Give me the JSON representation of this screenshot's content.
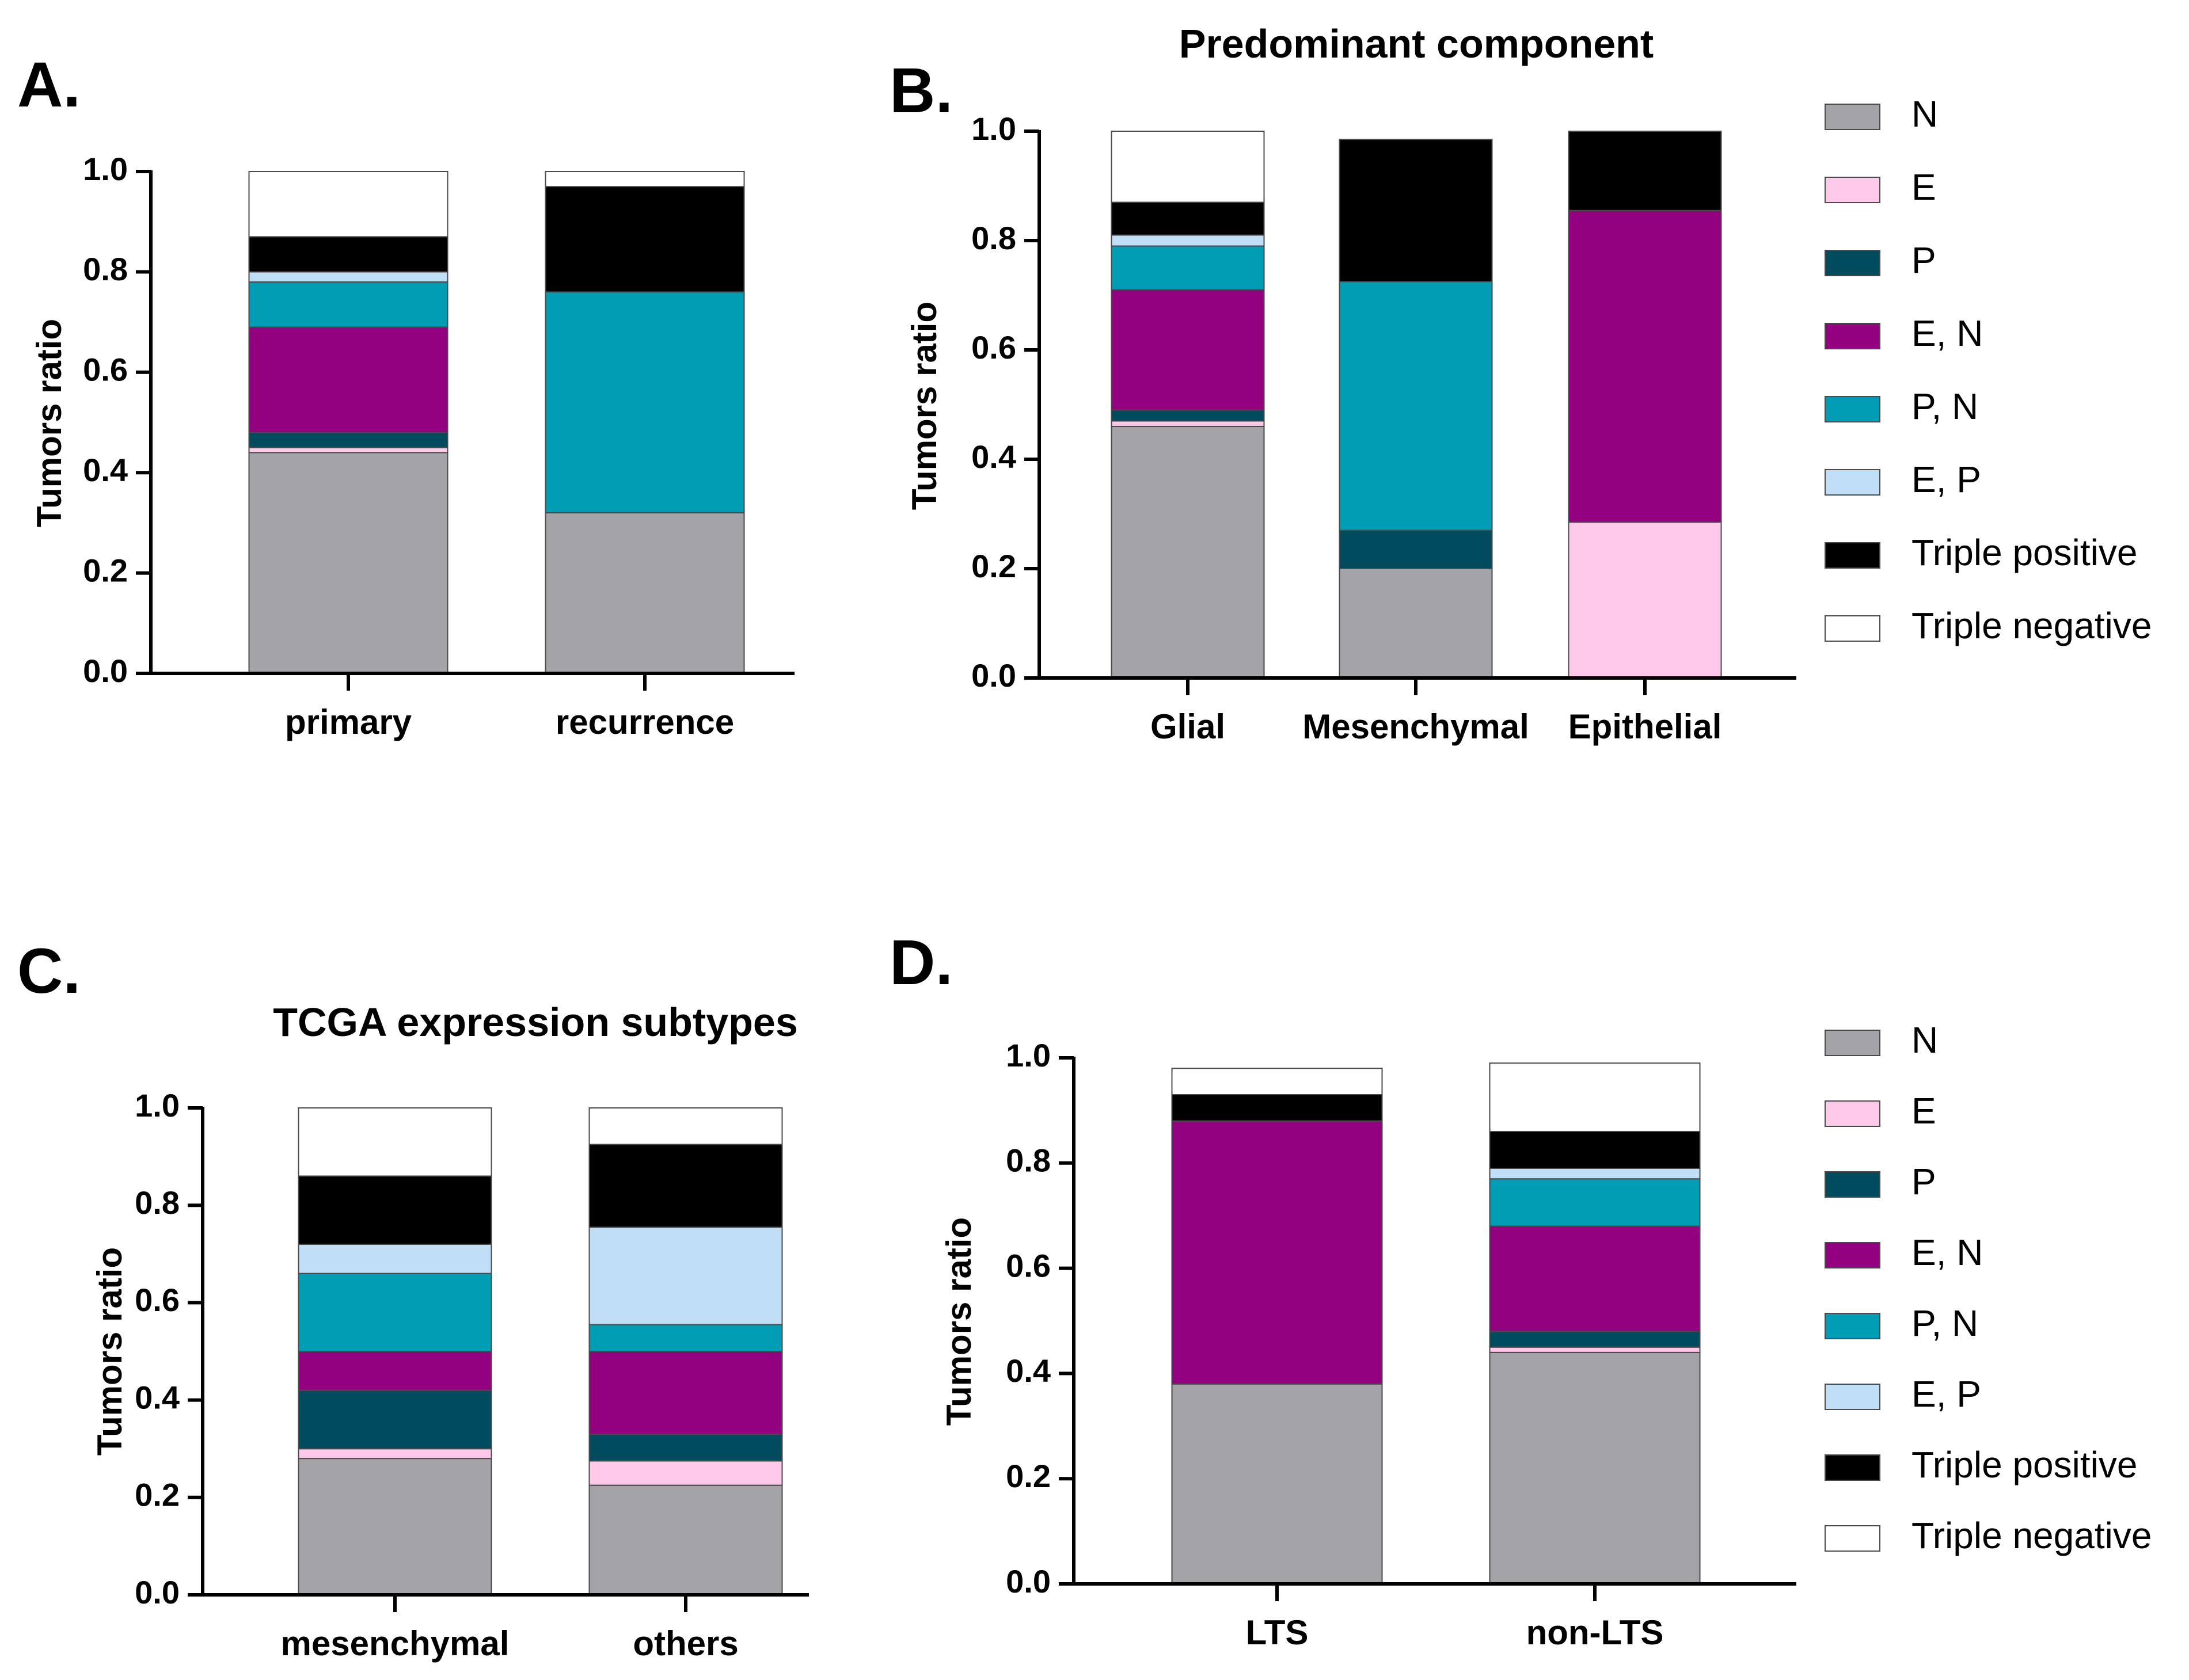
{
  "colors": {
    "N": "#a4a3a8",
    "E": "#ffc9ea",
    "P": "#004b5e",
    "E, N": "#930080",
    "P, N": "#009db5",
    "E, P": "#c0dff7",
    "Triple positive": "#000000",
    "Triple negative": "#ffffff"
  },
  "legend_entries": [
    "N",
    "E",
    "P",
    "E, N",
    "P, N",
    "E, P",
    "Triple positive",
    "Triple negative"
  ],
  "chart_data": [
    {
      "panel": "A.",
      "type": "bar",
      "stacked": true,
      "title": "",
      "ylabel": "Tumors ratio",
      "xlabel": "",
      "ylim": [
        0,
        1.0
      ],
      "yticks": [
        "0.0",
        "0.2",
        "0.4",
        "0.6",
        "0.8",
        "1.0"
      ],
      "categories": [
        "primary",
        "recurrence"
      ],
      "legend": "none",
      "series": [
        {
          "name": "N",
          "values": [
            0.44,
            0.32
          ]
        },
        {
          "name": "E",
          "values": [
            0.01,
            0.0
          ]
        },
        {
          "name": "P",
          "values": [
            0.03,
            0.0
          ]
        },
        {
          "name": "E, N",
          "values": [
            0.21,
            0.0
          ]
        },
        {
          "name": "P, N",
          "values": [
            0.09,
            0.44
          ]
        },
        {
          "name": "E, P",
          "values": [
            0.02,
            0.0
          ]
        },
        {
          "name": "Triple positive",
          "values": [
            0.07,
            0.21
          ]
        },
        {
          "name": "Triple negative",
          "values": [
            0.13,
            0.03
          ]
        }
      ]
    },
    {
      "panel": "B.",
      "type": "bar",
      "stacked": true,
      "title": "Predominant component",
      "ylabel": "Tumors ratio",
      "xlabel": "",
      "ylim": [
        0,
        1.0
      ],
      "yticks": [
        "0.0",
        "0.2",
        "0.4",
        "0.6",
        "0.8",
        "1.0"
      ],
      "categories": [
        "Glial",
        "Mesenchymal",
        "Epithelial"
      ],
      "legend": "right",
      "series": [
        {
          "name": "N",
          "values": [
            0.46,
            0.2,
            0.0
          ]
        },
        {
          "name": "E",
          "values": [
            0.01,
            0.0,
            0.285
          ]
        },
        {
          "name": "P",
          "values": [
            0.02,
            0.07,
            0.0
          ]
        },
        {
          "name": "E, N",
          "values": [
            0.22,
            0.0,
            0.57
          ]
        },
        {
          "name": "P, N",
          "values": [
            0.08,
            0.455,
            0.0
          ]
        },
        {
          "name": "E, P",
          "values": [
            0.02,
            0.0,
            0.0
          ]
        },
        {
          "name": "Triple positive",
          "values": [
            0.06,
            0.26,
            0.145
          ]
        },
        {
          "name": "Triple negative",
          "values": [
            0.13,
            0.0,
            0.0
          ]
        }
      ]
    },
    {
      "panel": "C.",
      "type": "bar",
      "stacked": true,
      "title": "TCGA expression subtypes",
      "ylabel": "Tumors ratio",
      "xlabel": "",
      "ylim": [
        0,
        1.0
      ],
      "yticks": [
        "0.0",
        "0.2",
        "0.4",
        "0.6",
        "0.8",
        "1.0"
      ],
      "categories": [
        "mesenchymal",
        "others"
      ],
      "legend": "none",
      "series": [
        {
          "name": "N",
          "values": [
            0.28,
            0.225
          ]
        },
        {
          "name": "E",
          "values": [
            0.02,
            0.05
          ]
        },
        {
          "name": "P",
          "values": [
            0.12,
            0.055
          ]
        },
        {
          "name": "E, N",
          "values": [
            0.08,
            0.17
          ]
        },
        {
          "name": "P, N",
          "values": [
            0.16,
            0.055
          ]
        },
        {
          "name": "E, P",
          "values": [
            0.06,
            0.2
          ]
        },
        {
          "name": "Triple positive",
          "values": [
            0.14,
            0.17
          ]
        },
        {
          "name": "Triple negative",
          "values": [
            0.14,
            0.075
          ]
        }
      ]
    },
    {
      "panel": "D.",
      "type": "bar",
      "stacked": true,
      "title": "",
      "ylabel": "Tumors ratio",
      "xlabel": "",
      "ylim": [
        0,
        1.0
      ],
      "yticks": [
        "0.0",
        "0.2",
        "0.4",
        "0.6",
        "0.8",
        "1.0"
      ],
      "categories": [
        "LTS",
        "non-LTS"
      ],
      "legend": "right",
      "series": [
        {
          "name": "N",
          "values": [
            0.38,
            0.44
          ]
        },
        {
          "name": "E",
          "values": [
            0.0,
            0.01
          ]
        },
        {
          "name": "P",
          "values": [
            0.0,
            0.03
          ]
        },
        {
          "name": "E, N",
          "values": [
            0.5,
            0.2
          ]
        },
        {
          "name": "P, N",
          "values": [
            0.0,
            0.09
          ]
        },
        {
          "name": "E, P",
          "values": [
            0.0,
            0.02
          ]
        },
        {
          "name": "Triple positive",
          "values": [
            0.05,
            0.07
          ]
        },
        {
          "name": "Triple negative",
          "values": [
            0.05,
            0.13
          ]
        }
      ]
    }
  ]
}
